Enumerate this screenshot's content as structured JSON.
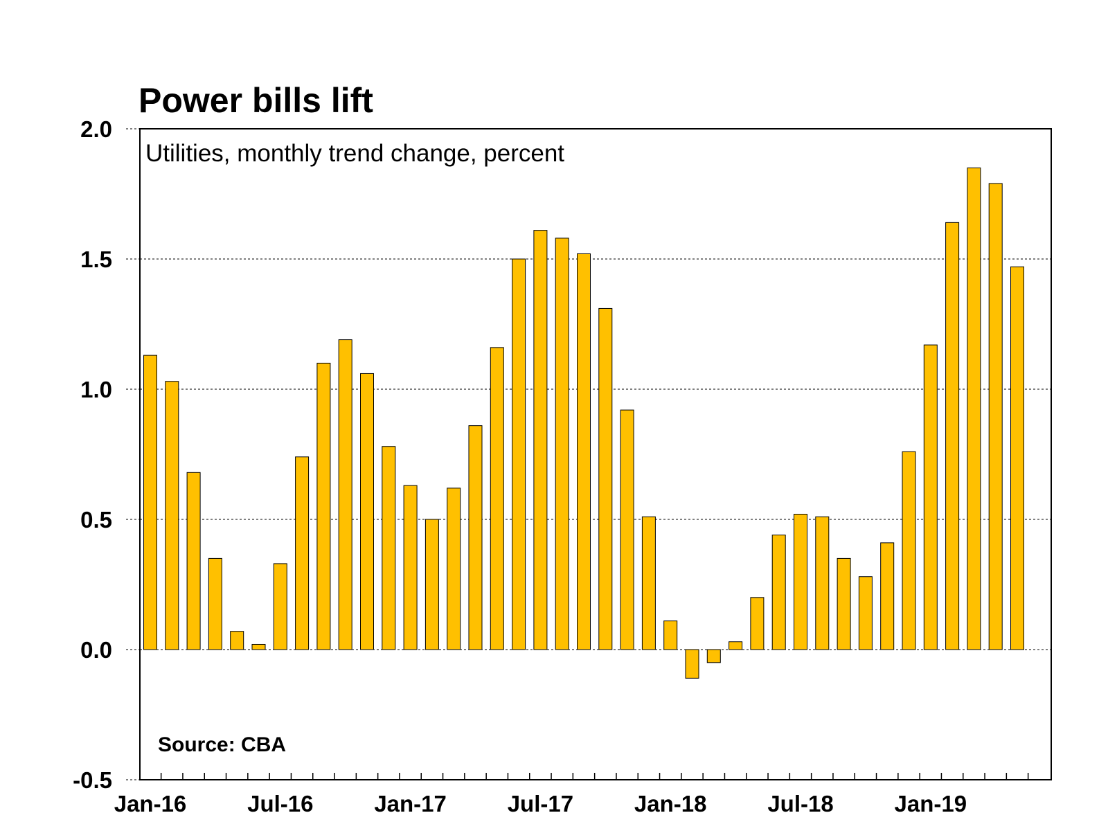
{
  "chart_data": {
    "type": "bar",
    "title": "Power bills lift",
    "subtitle": "Utilities, monthly trend change, percent",
    "source": "Source: CBA",
    "xlabel": "",
    "ylabel": "",
    "ylim": [
      -0.5,
      2.0
    ],
    "yticks": [
      "2.0",
      "1.5",
      "1.0",
      "0.5",
      "0.0",
      "-0.5"
    ],
    "ytick_values": [
      2.0,
      1.5,
      1.0,
      0.5,
      0.0,
      -0.5
    ],
    "grid": true,
    "bar_color": "#FFC000",
    "categories": [
      "Jan-16",
      "Feb-16",
      "Mar-16",
      "Apr-16",
      "May-16",
      "Jun-16",
      "Jul-16",
      "Aug-16",
      "Sep-16",
      "Oct-16",
      "Nov-16",
      "Dec-16",
      "Jan-17",
      "Feb-17",
      "Mar-17",
      "Apr-17",
      "May-17",
      "Jun-17",
      "Jul-17",
      "Aug-17",
      "Sep-17",
      "Oct-17",
      "Nov-17",
      "Dec-17",
      "Jan-18",
      "Feb-18",
      "Mar-18",
      "Apr-18",
      "May-18",
      "Jun-18",
      "Jul-18",
      "Aug-18",
      "Sep-18",
      "Oct-18",
      "Nov-18",
      "Dec-18",
      "Jan-19",
      "Feb-19",
      "Mar-19",
      "Apr-19",
      "May-19"
    ],
    "values": [
      1.13,
      1.03,
      0.68,
      0.35,
      0.07,
      0.02,
      0.33,
      0.74,
      1.1,
      1.19,
      1.06,
      0.78,
      0.63,
      0.5,
      0.62,
      0.86,
      1.16,
      1.5,
      1.61,
      1.58,
      1.52,
      1.31,
      0.92,
      0.51,
      0.11,
      -0.11,
      -0.05,
      0.03,
      0.2,
      0.44,
      0.52,
      0.51,
      0.35,
      0.28,
      0.41,
      0.76,
      1.17,
      1.64,
      1.85,
      1.79,
      1.47
    ],
    "xtick_labels": [
      {
        "label": "Jan-16",
        "index": 0
      },
      {
        "label": "Jul-16",
        "index": 6
      },
      {
        "label": "Jan-17",
        "index": 12
      },
      {
        "label": "Jul-17",
        "index": 18
      },
      {
        "label": "Jan-18",
        "index": 24
      },
      {
        "label": "Jul-18",
        "index": 30
      },
      {
        "label": "Jan-19",
        "index": 36
      }
    ]
  }
}
